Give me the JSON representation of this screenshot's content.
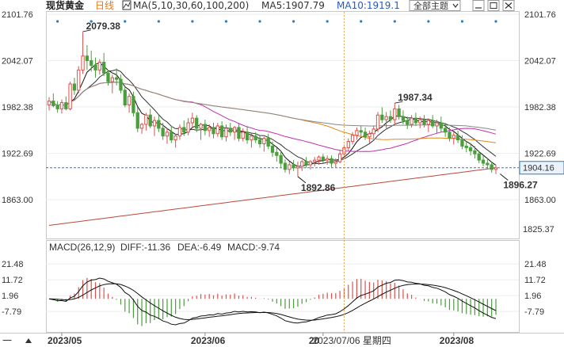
{
  "header": {
    "instrument": "现货黄金",
    "period": "日线",
    "ma_label": "MA(5,10,30,60,100,200)",
    "ma5_label": "MA5:1907.79",
    "ma10_label": "MA10:1919.1",
    "theme_button": "全部主题",
    "theme_icon": "chevron-down-icon",
    "window_icons": [
      "minimize-icon",
      "maximize-icon",
      "close-icon"
    ]
  },
  "chart_data": [
    {
      "type": "candlestick",
      "name": "gold-daily-price",
      "y_ticks": [
        "2101.76",
        "2042.07",
        "1982.38",
        "1922.69",
        "1863.00"
      ],
      "ylim": [
        1825.37,
        2101.76
      ],
      "axis_min_label": "1825.37",
      "current_price": 1904.16,
      "current_price_label": "1904.16",
      "annotations": [
        {
          "label": "2079.38",
          "value": 2079.38,
          "index": 8,
          "color": "#d9534f"
        },
        {
          "label": "1987.34",
          "value": 1987.34,
          "index": 82,
          "color": "#d9534f"
        },
        {
          "label": "1892.86",
          "value": 1892.86,
          "index": 59,
          "color": "#3c9a4b"
        },
        {
          "label": "1896.27",
          "value": 1896.27,
          "index": 107,
          "color": "#3c9a4b"
        }
      ],
      "x_labels": [
        {
          "label": "2023/05",
          "index": 3
        },
        {
          "label": "2023/06",
          "index": 37
        },
        {
          "label": "20",
          "index": 65
        },
        {
          "label": "2023/08",
          "index": 96
        }
      ],
      "hover_label": "2023/07/06 星期四",
      "hover_index": 70,
      "ohlc": [
        [
          1985,
          1995,
          1978,
          1990
        ],
        [
          1990,
          2000,
          1982,
          1984
        ],
        [
          1984,
          1990,
          1975,
          1980
        ],
        [
          1980,
          1992,
          1974,
          1988
        ],
        [
          1988,
          1996,
          1978,
          1980
        ],
        [
          1980,
          2015,
          1978,
          2012
        ],
        [
          2012,
          2020,
          1998,
          2004
        ],
        [
          2004,
          2035,
          2000,
          2030
        ],
        [
          2030,
          2079,
          2025,
          2048
        ],
        [
          2048,
          2062,
          2030,
          2042
        ],
        [
          2042,
          2055,
          2028,
          2036
        ],
        [
          2036,
          2046,
          2020,
          2030
        ],
        [
          2030,
          2044,
          2024,
          2040
        ],
        [
          2040,
          2052,
          2022,
          2026
        ],
        [
          2026,
          2030,
          2010,
          2015
        ],
        [
          2015,
          2024,
          2000,
          2020
        ],
        [
          2020,
          2032,
          2010,
          2018
        ],
        [
          2018,
          2024,
          2000,
          2004
        ],
        [
          2004,
          2010,
          1982,
          1985
        ],
        [
          1985,
          2000,
          1975,
          1996
        ],
        [
          1996,
          2002,
          1970,
          1975
        ],
        [
          1975,
          1982,
          1950,
          1955
        ],
        [
          1955,
          1962,
          1948,
          1960
        ],
        [
          1960,
          1975,
          1952,
          1972
        ],
        [
          1972,
          1980,
          1955,
          1958
        ],
        [
          1958,
          1970,
          1945,
          1965
        ],
        [
          1965,
          1972,
          1950,
          1955
        ],
        [
          1955,
          1962,
          1940,
          1945
        ],
        [
          1945,
          1955,
          1935,
          1950
        ],
        [
          1950,
          1958,
          1936,
          1940
        ],
        [
          1940,
          1948,
          1930,
          1945
        ],
        [
          1945,
          1960,
          1940,
          1956
        ],
        [
          1956,
          1965,
          1945,
          1950
        ],
        [
          1950,
          1968,
          1946,
          1962
        ],
        [
          1962,
          1975,
          1955,
          1968
        ],
        [
          1968,
          1972,
          1950,
          1955
        ],
        [
          1955,
          1962,
          1940,
          1960
        ],
        [
          1960,
          1966,
          1946,
          1952
        ],
        [
          1952,
          1960,
          1944,
          1956
        ],
        [
          1956,
          1962,
          1942,
          1948
        ],
        [
          1948,
          1962,
          1944,
          1958
        ],
        [
          1958,
          1964,
          1940,
          1944
        ],
        [
          1944,
          1960,
          1938,
          1955
        ],
        [
          1955,
          1962,
          1945,
          1950
        ],
        [
          1950,
          1958,
          1940,
          1956
        ],
        [
          1956,
          1962,
          1938,
          1942
        ],
        [
          1942,
          1955,
          1938,
          1950
        ],
        [
          1950,
          1958,
          1935,
          1940
        ],
        [
          1940,
          1948,
          1930,
          1945
        ],
        [
          1945,
          1950,
          1936,
          1940
        ],
        [
          1940,
          1946,
          1930,
          1935
        ],
        [
          1935,
          1944,
          1925,
          1942
        ],
        [
          1942,
          1948,
          1928,
          1932
        ],
        [
          1932,
          1938,
          1918,
          1924
        ],
        [
          1924,
          1930,
          1912,
          1920
        ],
        [
          1920,
          1926,
          1905,
          1910
        ],
        [
          1910,
          1915,
          1898,
          1902
        ],
        [
          1902,
          1912,
          1896,
          1908
        ],
        [
          1908,
          1914,
          1900,
          1904
        ],
        [
          1904,
          1912,
          1893,
          1906
        ],
        [
          1906,
          1914,
          1900,
          1912
        ],
        [
          1912,
          1918,
          1904,
          1908
        ],
        [
          1908,
          1914,
          1902,
          1912
        ],
        [
          1912,
          1918,
          1906,
          1914
        ],
        [
          1914,
          1920,
          1908,
          1918
        ],
        [
          1918,
          1922,
          1910,
          1914
        ],
        [
          1914,
          1920,
          1908,
          1916
        ],
        [
          1916,
          1920,
          1905,
          1910
        ],
        [
          1910,
          1916,
          1904,
          1912
        ],
        [
          1912,
          1926,
          1910,
          1922
        ],
        [
          1922,
          1934,
          1918,
          1930
        ],
        [
          1930,
          1942,
          1926,
          1938
        ],
        [
          1938,
          1950,
          1934,
          1946
        ],
        [
          1946,
          1956,
          1940,
          1952
        ],
        [
          1952,
          1958,
          1944,
          1950
        ],
        [
          1950,
          1956,
          1940,
          1944
        ],
        [
          1944,
          1952,
          1936,
          1948
        ],
        [
          1948,
          1958,
          1942,
          1954
        ],
        [
          1954,
          1976,
          1950,
          1972
        ],
        [
          1972,
          1982,
          1962,
          1966
        ],
        [
          1966,
          1976,
          1955,
          1970
        ],
        [
          1970,
          1978,
          1962,
          1966
        ],
        [
          1966,
          1987,
          1960,
          1980
        ],
        [
          1980,
          1985,
          1966,
          1970
        ],
        [
          1970,
          1978,
          1960,
          1965
        ],
        [
          1965,
          1970,
          1954,
          1960
        ],
        [
          1960,
          1972,
          1956,
          1968
        ],
        [
          1968,
          1975,
          1958,
          1962
        ],
        [
          1962,
          1970,
          1955,
          1966
        ],
        [
          1966,
          1972,
          1956,
          1960
        ],
        [
          1960,
          1968,
          1950,
          1965
        ],
        [
          1965,
          1972,
          1955,
          1958
        ],
        [
          1958,
          1966,
          1948,
          1962
        ],
        [
          1962,
          1970,
          1950,
          1955
        ],
        [
          1955,
          1962,
          1944,
          1950
        ],
        [
          1950,
          1956,
          1938,
          1942
        ],
        [
          1942,
          1950,
          1934,
          1946
        ],
        [
          1946,
          1952,
          1936,
          1940
        ],
        [
          1940,
          1946,
          1928,
          1932
        ],
        [
          1932,
          1938,
          1924,
          1930
        ],
        [
          1930,
          1936,
          1920,
          1926
        ],
        [
          1926,
          1932,
          1916,
          1922
        ],
        [
          1922,
          1926,
          1910,
          1914
        ],
        [
          1914,
          1920,
          1906,
          1910
        ],
        [
          1910,
          1916,
          1902,
          1908
        ],
        [
          1908,
          1912,
          1898,
          1902
        ],
        [
          1902,
          1908,
          1896,
          1904
        ]
      ]
    },
    {
      "type": "line",
      "name": "macd-indicator",
      "label": "MACD(26,12,9)",
      "diff_label": "DIFF:-11.36",
      "dea_label": "DEA:-6.49",
      "macd_label": "MACD:-9.74",
      "y_ticks": [
        "21.48",
        "11.72",
        "1.96",
        "-7.79"
      ],
      "ylim": [
        -17.5,
        26.0
      ],
      "series": [
        {
          "name": "DIFF",
          "key": "diff",
          "color": "#111111"
        },
        {
          "name": "DEA",
          "key": "dea",
          "color": "#111111"
        },
        {
          "name": "MACD",
          "key": "macd",
          "color": "#c23b9c"
        }
      ]
    }
  ]
}
